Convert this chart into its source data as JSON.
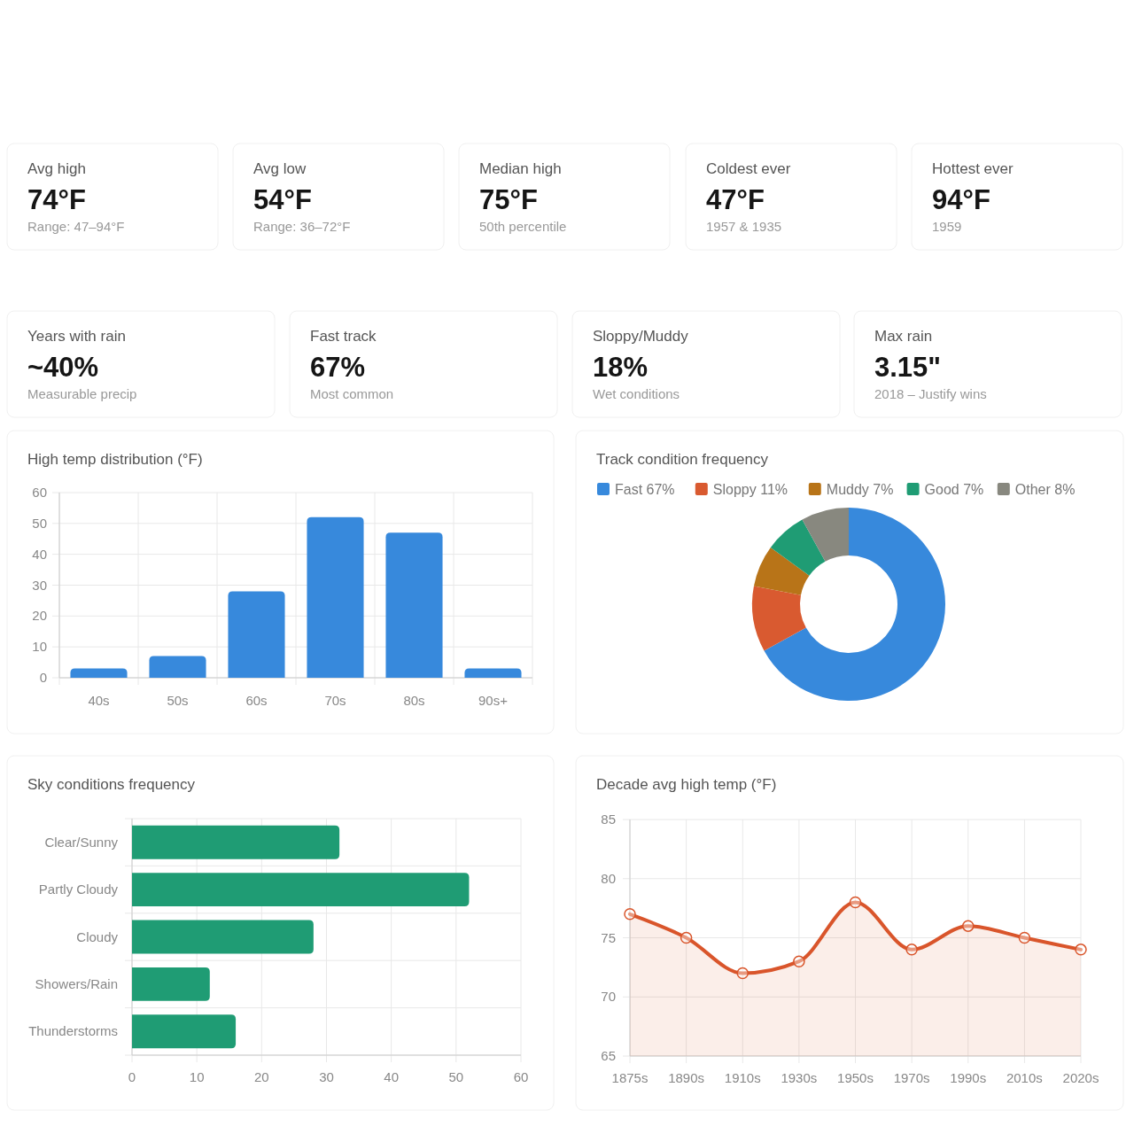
{
  "chart_data": [
    {
      "type": "other",
      "title": "Avg high",
      "annotations": [
        "74°F"
      ],
      "subtitle": "Range: 47–94°F"
    },
    {
      "type": "other",
      "title": "Avg low",
      "annotations": [
        "54°F"
      ],
      "subtitle": "Range: 36–72°F"
    },
    {
      "type": "other",
      "title": "Median high",
      "annotations": [
        "75°F"
      ],
      "subtitle": "50th percentile"
    },
    {
      "type": "other",
      "title": "Coldest ever",
      "annotations": [
        "47°F"
      ],
      "subtitle": "1957 & 1935"
    },
    {
      "type": "other",
      "title": "Hottest ever",
      "annotations": [
        "94°F"
      ],
      "subtitle": "1959"
    },
    {
      "type": "other",
      "title": "Years with rain",
      "annotations": [
        "~40%"
      ],
      "subtitle": "Measurable precip"
    },
    {
      "type": "other",
      "title": "Fast track",
      "annotations": [
        "67%"
      ],
      "subtitle": "Most common"
    },
    {
      "type": "other",
      "title": "Sloppy/Muddy",
      "annotations": [
        "18%"
      ],
      "subtitle": "Wet conditions"
    },
    {
      "type": "other",
      "title": "Max rain",
      "annotations": [
        "3.15\""
      ],
      "subtitle": "2018 – Justify wins"
    },
    {
      "type": "bar",
      "title": "High temp distribution (°F)",
      "categories": [
        "40s",
        "50s",
        "60s",
        "70s",
        "80s",
        "90s+"
      ],
      "values": [
        3,
        7,
        28,
        52,
        47,
        3
      ],
      "color": "#3789dc",
      "ylim": [
        0,
        60
      ],
      "yticks": [
        0,
        10,
        20,
        30,
        40,
        50,
        60
      ],
      "grid": true
    },
    {
      "type": "donut",
      "title": "Track condition frequency",
      "categories": [
        "Fast 67%",
        "Sloppy 11%",
        "Muddy 7%",
        "Good 7%",
        "Other 8%"
      ],
      "values": [
        67,
        11,
        7,
        7,
        8
      ],
      "colors": [
        "#3789dc",
        "#d95a30",
        "#b87418",
        "#1f9c74",
        "#88887f"
      ],
      "legend": "top"
    },
    {
      "type": "bar",
      "orientation": "horizontal",
      "title": "Sky conditions frequency",
      "categories": [
        "Clear/Sunny",
        "Partly Cloudy",
        "Cloudy",
        "Showers/Rain",
        "Thunderstorms"
      ],
      "values": [
        32,
        52,
        28,
        12,
        16
      ],
      "color": "#1f9c74",
      "xlim": [
        0,
        60
      ],
      "xticks": [
        0,
        10,
        20,
        30,
        40,
        50,
        60
      ],
      "grid": true
    },
    {
      "type": "area",
      "title": "Decade avg high temp (°F)",
      "categories": [
        "1875s",
        "1890s",
        "1910s",
        "1930s",
        "1950s",
        "1970s",
        "1990s",
        "2010s",
        "2020s"
      ],
      "values": [
        77,
        75,
        72,
        73,
        78,
        74,
        76,
        75,
        74
      ],
      "color": "#d9552b",
      "ylim": [
        65,
        85
      ],
      "yticks": [
        65,
        70,
        75,
        80,
        85
      ],
      "grid": true,
      "marker": "circle"
    }
  ]
}
